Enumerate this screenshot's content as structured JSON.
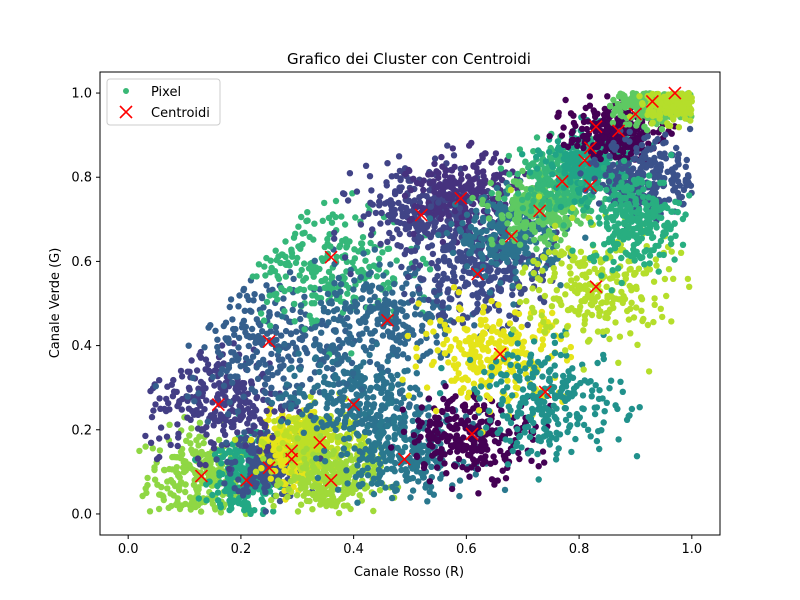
{
  "chart_data": {
    "type": "scatter",
    "title": "Grafico dei Cluster con Centroidi",
    "xlabel": "Canale Rosso (R)",
    "ylabel": "Canale Verde (G)",
    "xlim": [
      -0.05,
      1.05
    ],
    "ylim": [
      -0.05,
      1.05
    ],
    "xticks": [
      "0.0",
      "0.2",
      "0.4",
      "0.6",
      "0.8",
      "1.0"
    ],
    "yticks": [
      "0.0",
      "0.2",
      "0.4",
      "0.6",
      "0.8",
      "1.0"
    ],
    "grid": false,
    "legend": {
      "placement": "top-left",
      "entries": [
        {
          "label": "Pixel",
          "marker": "circle",
          "color": "#3ab876"
        },
        {
          "label": "Centroidi",
          "marker": "x",
          "color": "#ff0000"
        }
      ]
    },
    "centroid_color": "#ff0000",
    "centroids": [
      [
        0.13,
        0.09
      ],
      [
        0.21,
        0.08
      ],
      [
        0.25,
        0.11
      ],
      [
        0.29,
        0.15
      ],
      [
        0.29,
        0.13
      ],
      [
        0.34,
        0.17
      ],
      [
        0.36,
        0.08
      ],
      [
        0.16,
        0.26
      ],
      [
        0.25,
        0.41
      ],
      [
        0.4,
        0.26
      ],
      [
        0.36,
        0.61
      ],
      [
        0.46,
        0.46
      ],
      [
        0.49,
        0.13
      ],
      [
        0.52,
        0.71
      ],
      [
        0.59,
        0.75
      ],
      [
        0.61,
        0.19
      ],
      [
        0.62,
        0.57
      ],
      [
        0.66,
        0.38
      ],
      [
        0.68,
        0.66
      ],
      [
        0.73,
        0.72
      ],
      [
        0.74,
        0.29
      ],
      [
        0.77,
        0.79
      ],
      [
        0.81,
        0.84
      ],
      [
        0.82,
        0.78
      ],
      [
        0.82,
        0.87
      ],
      [
        0.83,
        0.92
      ],
      [
        0.83,
        0.54
      ],
      [
        0.87,
        0.91
      ],
      [
        0.9,
        0.95
      ],
      [
        0.93,
        0.98
      ],
      [
        0.97,
        1.0
      ]
    ],
    "clusters": [
      {
        "center": [
          0.13,
          0.09
        ],
        "spread": [
          0.06,
          0.07
        ],
        "color": "#8fd744"
      },
      {
        "center": [
          0.21,
          0.08
        ],
        "spread": [
          0.04,
          0.06
        ],
        "color": "#22a884"
      },
      {
        "center": [
          0.25,
          0.12
        ],
        "spread": [
          0.04,
          0.05
        ],
        "color": "#3b528b"
      },
      {
        "center": [
          0.29,
          0.16
        ],
        "spread": [
          0.03,
          0.05
        ],
        "color": "#e5e419"
      },
      {
        "center": [
          0.34,
          0.17
        ],
        "spread": [
          0.05,
          0.05
        ],
        "color": "#bddf26"
      },
      {
        "center": [
          0.36,
          0.08
        ],
        "spread": [
          0.05,
          0.05
        ],
        "color": "#a0da39"
      },
      {
        "center": [
          0.16,
          0.27
        ],
        "spread": [
          0.08,
          0.08
        ],
        "color": "#433e85"
      },
      {
        "center": [
          0.25,
          0.41
        ],
        "spread": [
          0.09,
          0.1
        ],
        "color": "#355f8d"
      },
      {
        "center": [
          0.4,
          0.27
        ],
        "spread": [
          0.08,
          0.07
        ],
        "color": "#2c728e"
      },
      {
        "center": [
          0.35,
          0.6
        ],
        "spread": [
          0.09,
          0.09
        ],
        "color": "#35b779"
      },
      {
        "center": [
          0.46,
          0.46
        ],
        "spread": [
          0.08,
          0.08
        ],
        "color": "#31688e"
      },
      {
        "center": [
          0.49,
          0.14
        ],
        "spread": [
          0.07,
          0.06
        ],
        "color": "#2a788e"
      },
      {
        "center": [
          0.52,
          0.72
        ],
        "spread": [
          0.07,
          0.07
        ],
        "color": "#414487"
      },
      {
        "center": [
          0.6,
          0.75
        ],
        "spread": [
          0.06,
          0.06
        ],
        "color": "#46327e"
      },
      {
        "center": [
          0.61,
          0.19
        ],
        "spread": [
          0.07,
          0.06
        ],
        "color": "#440154"
      },
      {
        "center": [
          0.62,
          0.57
        ],
        "spread": [
          0.07,
          0.07
        ],
        "color": "#3e4a89"
      },
      {
        "center": [
          0.65,
          0.38
        ],
        "spread": [
          0.08,
          0.07
        ],
        "color": "#e5e419"
      },
      {
        "center": [
          0.68,
          0.66
        ],
        "spread": [
          0.06,
          0.06
        ],
        "color": "#2c728e"
      },
      {
        "center": [
          0.73,
          0.72
        ],
        "spread": [
          0.05,
          0.05
        ],
        "color": "#5ec962"
      },
      {
        "center": [
          0.75,
          0.27
        ],
        "spread": [
          0.08,
          0.08
        ],
        "color": "#21918c"
      },
      {
        "center": [
          0.77,
          0.8
        ],
        "spread": [
          0.05,
          0.05
        ],
        "color": "#35b779"
      },
      {
        "center": [
          0.83,
          0.54
        ],
        "spread": [
          0.08,
          0.09
        ],
        "color": "#b5de2b"
      },
      {
        "center": [
          0.82,
          0.84
        ],
        "spread": [
          0.05,
          0.05
        ],
        "color": "#20a486"
      },
      {
        "center": [
          0.86,
          0.91
        ],
        "spread": [
          0.05,
          0.04
        ],
        "color": "#440154"
      },
      {
        "center": [
          0.92,
          0.8
        ],
        "spread": [
          0.05,
          0.06
        ],
        "color": "#3b528b"
      },
      {
        "center": [
          0.93,
          0.97
        ],
        "spread": [
          0.04,
          0.03
        ],
        "color": "#5ec962"
      },
      {
        "center": [
          0.97,
          0.98
        ],
        "spread": [
          0.03,
          0.03
        ],
        "color": "#b5de2b"
      },
      {
        "center": [
          0.9,
          0.7
        ],
        "spread": [
          0.05,
          0.07
        ],
        "color": "#28ae80"
      }
    ]
  }
}
